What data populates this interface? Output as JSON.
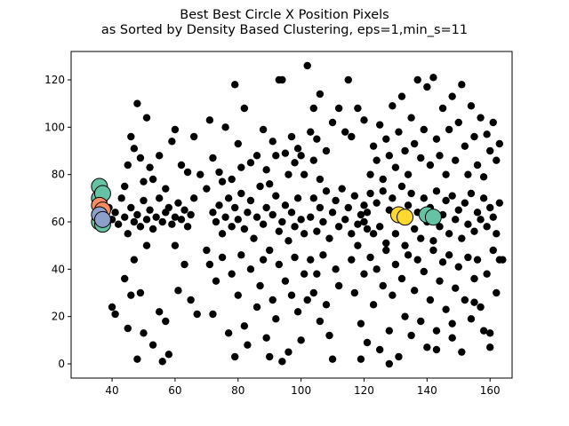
{
  "chart_data": {
    "type": "scatter",
    "title_lines": [
      "Best Best Circle X Position Pixels",
      "as Sorted by Density Based Clustering, eps=1,min_s=11"
    ],
    "xlabel": "",
    "ylabel": "",
    "xlim": [
      27,
      167
    ],
    "ylim": [
      -6,
      132
    ],
    "xticks": [
      40,
      60,
      80,
      100,
      120,
      140,
      160
    ],
    "yticks": [
      0,
      20,
      40,
      60,
      80,
      100,
      120
    ],
    "grid": false,
    "legend": "none",
    "point_color": "#000000",
    "cluster_colors": [
      "#66c2a5",
      "#fc8d62",
      "#8da0cb",
      "#ffd92f",
      "#a6d854"
    ],
    "noise_points": [
      [
        37,
        58
      ],
      [
        38,
        62
      ],
      [
        39,
        66
      ],
      [
        40,
        61
      ],
      [
        41,
        64
      ],
      [
        42,
        59
      ],
      [
        43,
        70
      ],
      [
        44,
        62
      ],
      [
        45,
        55
      ],
      [
        46,
        66
      ],
      [
        47,
        60
      ],
      [
        48,
        63
      ],
      [
        49,
        58
      ],
      [
        50,
        69
      ],
      [
        51,
        61
      ],
      [
        52,
        65
      ],
      [
        53,
        57
      ],
      [
        54,
        62
      ],
      [
        55,
        70
      ],
      [
        56,
        60
      ],
      [
        57,
        64
      ],
      [
        58,
        66
      ],
      [
        59,
        59
      ],
      [
        60,
        62
      ],
      [
        61,
        68
      ],
      [
        62,
        61
      ],
      [
        63,
        65
      ],
      [
        64,
        58
      ],
      [
        65,
        63
      ],
      [
        66,
        70
      ],
      [
        40,
        24
      ],
      [
        41,
        21
      ],
      [
        44,
        36
      ],
      [
        45,
        15
      ],
      [
        46,
        29
      ],
      [
        47,
        44
      ],
      [
        48,
        2
      ],
      [
        49,
        30
      ],
      [
        50,
        13
      ],
      [
        51,
        50
      ],
      [
        53,
        8
      ],
      [
        55,
        22
      ],
      [
        56,
        1
      ],
      [
        57,
        18
      ],
      [
        58,
        4
      ],
      [
        60,
        50
      ],
      [
        61,
        31
      ],
      [
        63,
        42
      ],
      [
        65,
        27
      ],
      [
        67,
        21
      ],
      [
        44,
        75
      ],
      [
        45,
        84
      ],
      [
        46,
        96
      ],
      [
        47,
        91
      ],
      [
        48,
        110
      ],
      [
        49,
        87
      ],
      [
        50,
        77
      ],
      [
        51,
        104
      ],
      [
        52,
        83
      ],
      [
        53,
        78
      ],
      [
        55,
        88
      ],
      [
        57,
        74
      ],
      [
        59,
        94
      ],
      [
        60,
        99
      ],
      [
        62,
        84
      ],
      [
        64,
        81
      ],
      [
        66,
        96
      ],
      [
        68,
        80
      ],
      [
        70,
        74
      ],
      [
        71,
        103
      ],
      [
        72,
        64
      ],
      [
        73,
        60
      ],
      [
        74,
        67
      ],
      [
        75,
        55
      ],
      [
        76,
        62
      ],
      [
        77,
        70
      ],
      [
        78,
        58
      ],
      [
        79,
        66
      ],
      [
        80,
        61
      ],
      [
        81,
        72
      ],
      [
        82,
        57
      ],
      [
        83,
        64
      ],
      [
        84,
        69
      ],
      [
        85,
        53
      ],
      [
        86,
        62
      ],
      [
        87,
        75
      ],
      [
        88,
        59
      ],
      [
        89,
        66
      ],
      [
        90,
        48
      ],
      [
        91,
        63
      ],
      [
        92,
        71
      ],
      [
        93,
        56
      ],
      [
        94,
        60
      ],
      [
        95,
        67
      ],
      [
        96,
        52
      ],
      [
        97,
        64
      ],
      [
        98,
        58
      ],
      [
        99,
        70
      ],
      [
        100,
        61
      ],
      [
        101,
        55
      ],
      [
        70,
        48
      ],
      [
        71,
        42
      ],
      [
        72,
        21
      ],
      [
        73,
        35
      ],
      [
        75,
        45
      ],
      [
        77,
        13
      ],
      [
        78,
        38
      ],
      [
        79,
        3
      ],
      [
        80,
        29
      ],
      [
        81,
        46
      ],
      [
        82,
        16
      ],
      [
        83,
        8
      ],
      [
        84,
        40
      ],
      [
        86,
        24
      ],
      [
        87,
        33
      ],
      [
        88,
        44
      ],
      [
        89,
        11
      ],
      [
        90,
        3
      ],
      [
        91,
        27
      ],
      [
        92,
        19
      ],
      [
        93,
        42
      ],
      [
        94,
        1
      ],
      [
        95,
        35
      ],
      [
        96,
        5
      ],
      [
        97,
        29
      ],
      [
        98,
        45
      ],
      [
        99,
        22
      ],
      [
        100,
        10
      ],
      [
        101,
        38
      ],
      [
        102,
        27
      ],
      [
        72,
        87
      ],
      [
        74,
        81
      ],
      [
        75,
        77
      ],
      [
        76,
        100
      ],
      [
        78,
        78
      ],
      [
        79,
        118
      ],
      [
        80,
        93
      ],
      [
        81,
        83
      ],
      [
        82,
        108
      ],
      [
        84,
        85
      ],
      [
        86,
        88
      ],
      [
        88,
        99
      ],
      [
        89,
        82
      ],
      [
        90,
        76
      ],
      [
        91,
        94
      ],
      [
        92,
        88
      ],
      [
        93,
        120
      ],
      [
        94,
        120
      ],
      [
        95,
        89
      ],
      [
        96,
        80
      ],
      [
        97,
        96
      ],
      [
        98,
        85
      ],
      [
        99,
        91
      ],
      [
        100,
        88
      ],
      [
        101,
        80
      ],
      [
        102,
        126
      ],
      [
        103,
        98
      ],
      [
        104,
        86
      ],
      [
        105,
        95
      ],
      [
        106,
        78
      ],
      [
        103,
        62
      ],
      [
        104,
        70
      ],
      [
        105,
        56
      ],
      [
        106,
        66
      ],
      [
        107,
        60
      ],
      [
        108,
        73
      ],
      [
        109,
        53
      ],
      [
        110,
        64
      ],
      [
        111,
        69
      ],
      [
        112,
        58
      ],
      [
        113,
        74
      ],
      [
        114,
        61
      ],
      [
        115,
        66
      ],
      [
        116,
        55
      ],
      [
        117,
        71
      ],
      [
        118,
        59
      ],
      [
        119,
        63
      ],
      [
        120,
        67
      ],
      [
        121,
        57
      ],
      [
        122,
        72
      ],
      [
        103,
        44
      ],
      [
        104,
        30
      ],
      [
        105,
        38
      ],
      [
        106,
        18
      ],
      [
        107,
        46
      ],
      [
        108,
        25
      ],
      [
        109,
        12
      ],
      [
        110,
        2
      ],
      [
        111,
        40
      ],
      [
        112,
        33
      ],
      [
        104,
        108
      ],
      [
        106,
        114
      ],
      [
        108,
        90
      ],
      [
        110,
        102
      ],
      [
        112,
        108
      ],
      [
        114,
        98
      ],
      [
        115,
        120
      ],
      [
        116,
        96
      ],
      [
        118,
        108
      ],
      [
        120,
        103
      ],
      [
        116,
        44
      ],
      [
        117,
        30
      ],
      [
        118,
        50
      ],
      [
        119,
        17
      ],
      [
        120,
        38
      ],
      [
        121,
        9
      ],
      [
        122,
        45
      ],
      [
        123,
        25
      ],
      [
        124,
        40
      ],
      [
        125,
        6
      ],
      [
        126,
        33
      ],
      [
        127,
        48
      ],
      [
        128,
        14
      ],
      [
        129,
        29
      ],
      [
        130,
        42
      ],
      [
        131,
        3
      ],
      [
        132,
        36
      ],
      [
        133,
        20
      ],
      [
        134,
        46
      ],
      [
        135,
        12
      ],
      [
        136,
        31
      ],
      [
        137,
        44
      ],
      [
        138,
        18
      ],
      [
        139,
        39
      ],
      [
        140,
        7
      ],
      [
        141,
        27
      ],
      [
        142,
        48
      ],
      [
        143,
        14
      ],
      [
        144,
        35
      ],
      [
        145,
        43
      ],
      [
        146,
        23
      ],
      [
        147,
        46
      ],
      [
        148,
        11
      ],
      [
        149,
        32
      ],
      [
        150,
        41
      ],
      [
        151,
        5
      ],
      [
        152,
        27
      ],
      [
        153,
        45
      ],
      [
        154,
        19
      ],
      [
        155,
        36
      ],
      [
        156,
        44
      ],
      [
        157,
        24
      ],
      [
        158,
        14
      ],
      [
        159,
        38
      ],
      [
        160,
        7
      ],
      [
        161,
        48
      ],
      [
        162,
        30
      ],
      [
        163,
        44
      ],
      [
        119,
        2
      ],
      [
        128,
        0
      ],
      [
        122,
        80
      ],
      [
        123,
        92
      ],
      [
        124,
        86
      ],
      [
        125,
        101
      ],
      [
        126,
        78
      ],
      [
        127,
        95
      ],
      [
        128,
        88
      ],
      [
        129,
        109
      ],
      [
        130,
        83
      ],
      [
        131,
        98
      ],
      [
        132,
        113
      ],
      [
        133,
        90
      ],
      [
        134,
        80
      ],
      [
        135,
        104
      ],
      [
        136,
        93
      ],
      [
        137,
        120
      ],
      [
        138,
        87
      ],
      [
        139,
        99
      ],
      [
        140,
        117
      ],
      [
        141,
        84
      ],
      [
        142,
        121
      ],
      [
        143,
        95
      ],
      [
        144,
        88
      ],
      [
        145,
        108
      ],
      [
        146,
        80
      ],
      [
        147,
        99
      ],
      [
        148,
        113
      ],
      [
        149,
        86
      ],
      [
        150,
        102
      ],
      [
        151,
        118
      ],
      [
        152,
        92
      ],
      [
        153,
        80
      ],
      [
        154,
        109
      ],
      [
        155,
        96
      ],
      [
        156,
        84
      ],
      [
        157,
        104
      ],
      [
        158,
        79
      ],
      [
        159,
        97
      ],
      [
        160,
        90
      ],
      [
        161,
        102
      ],
      [
        162,
        86
      ],
      [
        163,
        93
      ],
      [
        120,
        60
      ],
      [
        121,
        64
      ],
      [
        123,
        55
      ],
      [
        124,
        68
      ],
      [
        125,
        58
      ],
      [
        126,
        73
      ],
      [
        127,
        51
      ],
      [
        128,
        65
      ],
      [
        129,
        70
      ],
      [
        130,
        55
      ],
      [
        131,
        62
      ],
      [
        132,
        75
      ],
      [
        133,
        50
      ],
      [
        134,
        67
      ],
      [
        135,
        72
      ],
      [
        136,
        57
      ],
      [
        137,
        64
      ],
      [
        138,
        53
      ],
      [
        139,
        70
      ],
      [
        140,
        60
      ],
      [
        141,
        66
      ],
      [
        142,
        52
      ],
      [
        143,
        73
      ],
      [
        144,
        58
      ],
      [
        145,
        63
      ],
      [
        146,
        69
      ],
      [
        147,
        55
      ],
      [
        148,
        71
      ],
      [
        149,
        61
      ],
      [
        150,
        65
      ],
      [
        151,
        53
      ],
      [
        152,
        68
      ],
      [
        153,
        59
      ],
      [
        154,
        72
      ],
      [
        155,
        56
      ],
      [
        156,
        64
      ],
      [
        157,
        61
      ],
      [
        158,
        70
      ],
      [
        159,
        58
      ],
      [
        160,
        66
      ],
      [
        161,
        62
      ],
      [
        162,
        55
      ],
      [
        163,
        68
      ],
      [
        164,
        44
      ],
      [
        160,
        13
      ],
      [
        155,
        26
      ],
      [
        148,
        17
      ],
      [
        143,
        6
      ]
    ],
    "cluster_points": [
      {
        "x": 36,
        "y": 75,
        "cluster": 0
      },
      {
        "x": 36,
        "y": 70,
        "cluster": 0
      },
      {
        "x": 37,
        "y": 72,
        "cluster": 0
      },
      {
        "x": 36,
        "y": 60,
        "cluster": 0
      },
      {
        "x": 37,
        "y": 59,
        "cluster": 0
      },
      {
        "x": 36,
        "y": 67,
        "cluster": 1
      },
      {
        "x": 37,
        "y": 65,
        "cluster": 1
      },
      {
        "x": 36,
        "y": 63,
        "cluster": 2
      },
      {
        "x": 37,
        "y": 61,
        "cluster": 2
      },
      {
        "x": 131,
        "y": 63,
        "cluster": 3
      },
      {
        "x": 133,
        "y": 62,
        "cluster": 3
      },
      {
        "x": 140,
        "y": 63,
        "cluster": 0
      },
      {
        "x": 142,
        "y": 62,
        "cluster": 0
      }
    ]
  }
}
